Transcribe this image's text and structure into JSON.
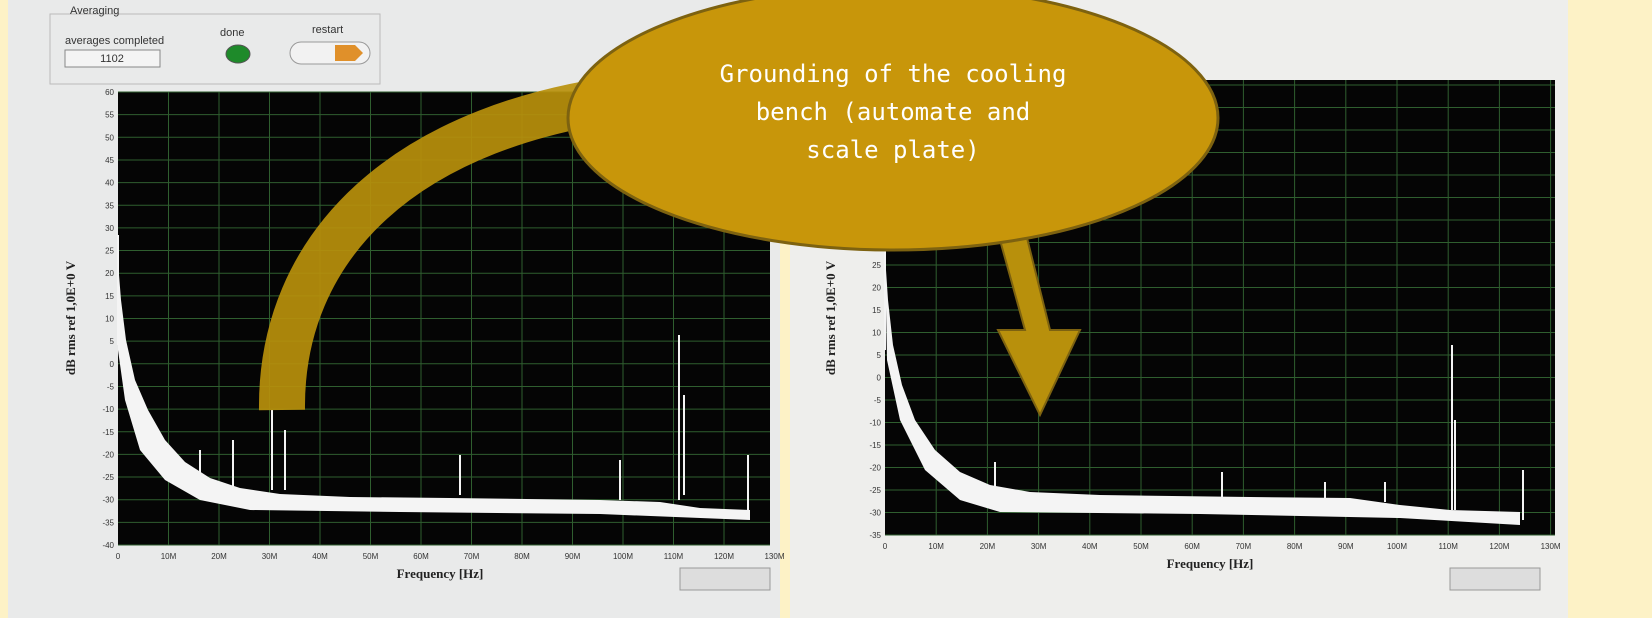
{
  "left_panel": {
    "averaging_label": "Averaging",
    "averages_label": "averages completed",
    "averages_value": "1102",
    "done_label": "done",
    "restart_label": "restart",
    "y_axis_label": "dB rms ref 1,0E+0 V",
    "yticks": [
      "60",
      "55",
      "50",
      "45",
      "40",
      "35",
      "30",
      "25",
      "20",
      "15",
      "10",
      "5",
      "0",
      "-5",
      "-10",
      "-15",
      "-20",
      "-25",
      "-30",
      "-35",
      "-40"
    ],
    "xticks": [
      "0",
      "10M",
      "20M",
      "30M",
      "40M",
      "50M",
      "60M",
      "70M",
      "80M",
      "90M",
      "100M",
      "110M",
      "120M",
      "130M"
    ],
    "x_axis_label": "Frequency [Hz]"
  },
  "right_panel": {
    "y_axis_label": "dB rms ref 1,0E+0 V",
    "yticks": [
      "25",
      "20",
      "15",
      "10",
      "5",
      "0",
      "-5",
      "-10",
      "-15",
      "-20",
      "-25",
      "-30",
      "-35"
    ],
    "xticks": [
      "0",
      "10M",
      "20M",
      "30M",
      "40M",
      "50M",
      "60M",
      "70M",
      "80M",
      "90M",
      "100M",
      "110M",
      "120M",
      "130M"
    ],
    "x_axis_label": "Frequency [Hz]"
  },
  "callout": {
    "lines": [
      "Grounding of the  cooling",
      "bench (automate and",
      "scale plate)"
    ]
  }
}
